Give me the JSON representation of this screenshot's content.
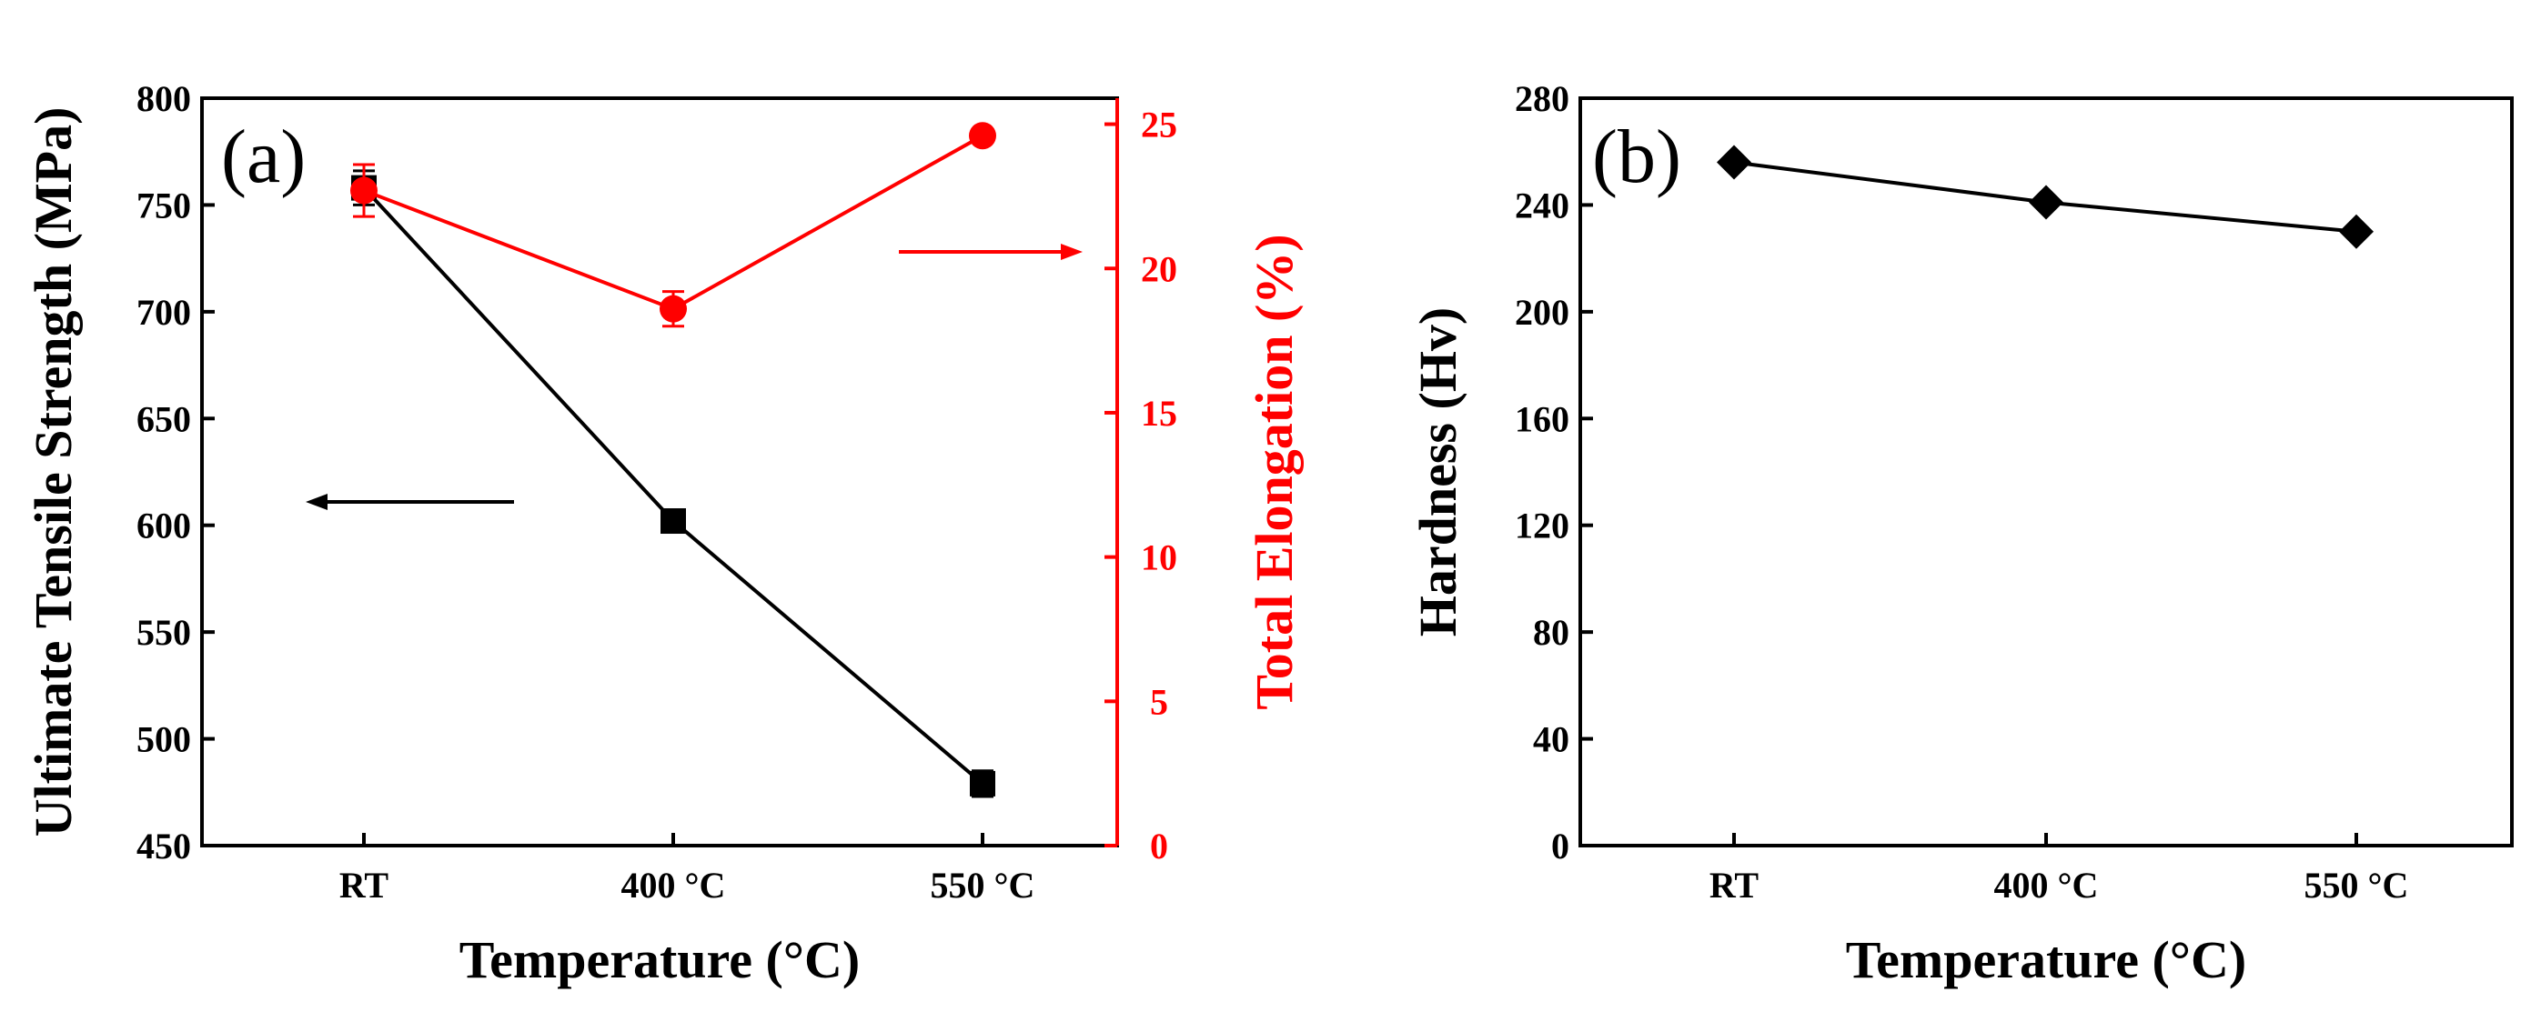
{
  "chart_data": [
    {
      "panel_label": "(a)",
      "type": "line",
      "categories": [
        "RT",
        "400 °C",
        "550 °C"
      ],
      "xlabel": "Temperature (°C)",
      "ylabel": "Ultimate Tensile Strength (MPa)",
      "ylim": [
        450,
        800
      ],
      "yticks": [
        450,
        500,
        550,
        600,
        650,
        700,
        750,
        800
      ],
      "y2label": "Total Elongation (%)",
      "y2lim": [
        0,
        25.9
      ],
      "y2ticks": [
        0,
        5,
        10,
        15,
        20,
        25
      ],
      "series": [
        {
          "name": "Ultimate Tensile Strength",
          "axis": "left",
          "color": "#000000",
          "marker": "square",
          "values": [
            758,
            602,
            479
          ],
          "errors": [
            8,
            5,
            6
          ]
        },
        {
          "name": "Total Elongation",
          "axis": "right",
          "color": "#ff0000",
          "marker": "circle",
          "values": [
            22.7,
            18.6,
            24.6
          ],
          "errors": [
            0.9,
            0.6,
            0.1
          ]
        }
      ],
      "annotations": [
        {
          "type": "arrow",
          "direction": "left",
          "points_to": "left axis",
          "color": "#000000"
        },
        {
          "type": "arrow",
          "direction": "right",
          "points_to": "right axis",
          "color": "#ff0000"
        }
      ]
    },
    {
      "panel_label": "(b)",
      "type": "line",
      "categories": [
        "RT",
        "400 °C",
        "550 °C"
      ],
      "xlabel": "Temperature (°C)",
      "ylabel": "Hardness (Hv)",
      "ylim": [
        0,
        280
      ],
      "yticks": [
        0,
        40,
        80,
        120,
        160,
        200,
        240,
        280
      ],
      "series": [
        {
          "name": "Hardness",
          "color": "#000000",
          "marker": "diamond",
          "values": [
            256,
            241,
            230
          ]
        }
      ]
    }
  ]
}
